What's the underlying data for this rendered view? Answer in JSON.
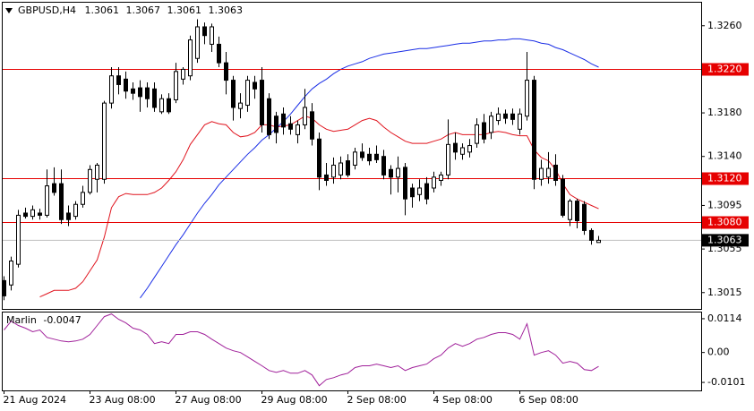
{
  "chart_data": [
    {
      "type": "candlestick",
      "title": "GBPUSD,H4",
      "categories": [
        "21 Aug 2024",
        null,
        null,
        null,
        null,
        null,
        null,
        null,
        null,
        null,
        null,
        null,
        "23 Aug 08:00",
        null,
        null,
        null,
        null,
        null,
        null,
        null,
        null,
        null,
        null,
        null,
        "27 Aug 08:00",
        null,
        null,
        null,
        null,
        null,
        null,
        null,
        null,
        null,
        null,
        null,
        "29 Aug 08:00",
        null,
        null,
        null,
        null,
        null,
        null,
        null,
        null,
        null,
        null,
        null,
        "2 Sep 08:00",
        null,
        null,
        null,
        null,
        null,
        null,
        null,
        null,
        null,
        null,
        null,
        "4 Sep 08:00",
        null,
        null,
        null,
        null,
        null,
        null,
        null,
        null,
        null,
        null,
        null,
        "6 Sep 08:00",
        null,
        null,
        null,
        null,
        null,
        null,
        null,
        null,
        null,
        null,
        null
      ],
      "open": [
        1.3026,
        1.3022,
        1.3041,
        1.3088,
        1.3085,
        1.3088,
        1.3086,
        1.3115,
        1.3115,
        1.3088,
        1.3085,
        1.3096,
        1.3107,
        1.3119,
        1.3119,
        1.3189,
        1.3214,
        1.3211,
        1.3202,
        1.3203,
        1.3203,
        1.3202,
        1.3181,
        1.3193,
        1.3192,
        1.3211,
        1.3214,
        1.323,
        1.3259,
        1.3243,
        1.3243,
        1.3226,
        1.321,
        1.3184,
        1.3187,
        1.3208,
        1.321,
        1.3193,
        1.3177,
        1.3179,
        1.317,
        1.316,
        1.3169,
        1.3181,
        1.3156,
        1.3123,
        1.3121,
        1.3123,
        1.3136,
        1.3132,
        1.3144,
        1.3142,
        1.3142,
        1.314,
        1.3128,
        1.3121,
        1.313,
        1.3111,
        1.3105,
        1.3115,
        1.3111,
        1.3118,
        1.3123,
        1.3152,
        1.3142,
        1.3144,
        1.3152,
        1.3171,
        1.3162,
        1.3173,
        1.3179,
        1.3179,
        1.3165,
        1.3177,
        1.321,
        1.3119,
        1.3121,
        1.3132,
        1.3119,
        1.3082,
        1.3099,
        1.3096,
        1.3072,
        1.3061
      ],
      "high": [
        1.303,
        1.3048,
        1.3091,
        1.3093,
        1.3095,
        1.3092,
        1.3128,
        1.313,
        1.3128,
        1.3095,
        1.3099,
        1.3113,
        1.3132,
        1.3134,
        1.3191,
        1.3222,
        1.3222,
        1.3218,
        1.3208,
        1.321,
        1.3208,
        1.3208,
        1.3197,
        1.3198,
        1.3226,
        1.3222,
        1.3251,
        1.3266,
        1.3263,
        1.3262,
        1.325,
        1.3236,
        1.3214,
        1.3198,
        1.3214,
        1.3214,
        1.3222,
        1.3198,
        1.3181,
        1.3185,
        1.3177,
        1.3173,
        1.3202,
        1.3189,
        1.3162,
        1.3134,
        1.3139,
        1.314,
        1.3142,
        1.3148,
        1.3152,
        1.3148,
        1.315,
        1.3146,
        1.3132,
        1.314,
        1.3134,
        1.3115,
        1.3119,
        1.3121,
        1.3126,
        1.3126,
        1.3174,
        1.3162,
        1.3152,
        1.3156,
        1.3175,
        1.3179,
        1.3181,
        1.3185,
        1.3183,
        1.3184,
        1.3184,
        1.3236,
        1.3214,
        1.3137,
        1.3144,
        1.3142,
        1.3123,
        1.3101,
        1.3101,
        1.3099,
        1.3074,
        1.3067
      ],
      "low": [
        1.3008,
        1.3017,
        1.3038,
        1.3083,
        1.3082,
        1.3082,
        1.3084,
        1.3104,
        1.3078,
        1.3076,
        1.3082,
        1.3093,
        1.3105,
        1.3107,
        1.3115,
        1.3184,
        1.3197,
        1.3193,
        1.3192,
        1.3181,
        1.3185,
        1.3181,
        1.3179,
        1.3179,
        1.3189,
        1.3206,
        1.321,
        1.3226,
        1.3243,
        1.3236,
        1.3222,
        1.3197,
        1.3173,
        1.3175,
        1.3181,
        1.3193,
        1.3162,
        1.3156,
        1.3152,
        1.316,
        1.316,
        1.3152,
        1.3165,
        1.315,
        1.3109,
        1.3113,
        1.3115,
        1.3119,
        1.3121,
        1.3128,
        1.3136,
        1.3132,
        1.3134,
        1.3119,
        1.3105,
        1.3107,
        1.3086,
        1.3093,
        1.3099,
        1.3096,
        1.3107,
        1.3113,
        1.3119,
        1.3137,
        1.3137,
        1.3139,
        1.3148,
        1.3152,
        1.3156,
        1.3169,
        1.317,
        1.3169,
        1.316,
        1.3173,
        1.311,
        1.3113,
        1.3115,
        1.3113,
        1.3084,
        1.3076,
        1.3074,
        1.3068,
        1.3059,
        1.3061
      ],
      "close": [
        1.3012,
        1.3044,
        1.3086,
        1.3085,
        1.3091,
        1.3086,
        1.3113,
        1.3107,
        1.3082,
        1.3082,
        1.3096,
        1.3107,
        1.3128,
        1.3132,
        1.3189,
        1.3214,
        1.3206,
        1.32,
        1.3198,
        1.3195,
        1.3193,
        1.3185,
        1.3193,
        1.3181,
        1.3218,
        1.322,
        1.3247,
        1.3259,
        1.3251,
        1.3259,
        1.3226,
        1.321,
        1.3185,
        1.3189,
        1.321,
        1.3202,
        1.3169,
        1.316,
        1.3162,
        1.3167,
        1.3165,
        1.3169,
        1.3185,
        1.3156,
        1.3121,
        1.3118,
        1.3132,
        1.3134,
        1.3123,
        1.3144,
        1.3139,
        1.3136,
        1.3137,
        1.3123,
        1.3121,
        1.3129,
        1.3101,
        1.3103,
        1.3111,
        1.3101,
        1.3121,
        1.3123,
        1.3151,
        1.3144,
        1.3148,
        1.315,
        1.3169,
        1.3156,
        1.3177,
        1.3179,
        1.3175,
        1.3174,
        1.3179,
        1.321,
        1.3119,
        1.3129,
        1.3129,
        1.3118,
        1.3086,
        1.3099,
        1.3081,
        1.3072,
        1.3063,
        1.3063
      ],
      "bull_color": "#ffffff",
      "bear_color": "#000000",
      "wick_color": "#000000",
      "moving_averages": [
        {
          "color": "#e0141e",
          "values": [
            null,
            null,
            null,
            null,
            null,
            1.3011,
            1.3014,
            1.3017,
            1.3017,
            1.3017,
            1.3019,
            1.3025,
            1.3035,
            1.3045,
            1.3066,
            1.3093,
            1.3103,
            1.3106,
            1.3105,
            1.3105,
            1.3105,
            1.3107,
            1.3111,
            1.3118,
            1.3126,
            1.3137,
            1.3151,
            1.316,
            1.3169,
            1.3172,
            1.317,
            1.3169,
            1.3162,
            1.3158,
            1.3159,
            1.3162,
            1.3169,
            1.3169,
            1.3167,
            1.3168,
            1.3169,
            1.3173,
            1.3177,
            1.3175,
            1.3169,
            1.3165,
            1.3163,
            1.3164,
            1.3165,
            1.3169,
            1.3173,
            1.3175,
            1.3173,
            1.3167,
            1.3162,
            1.3158,
            1.3154,
            1.3152,
            1.3152,
            1.3152,
            1.3154,
            1.3156,
            1.316,
            1.3162,
            1.316,
            1.316,
            1.316,
            1.316,
            1.3162,
            1.3163,
            1.3162,
            1.316,
            1.3159,
            1.3159,
            1.3146,
            1.3139,
            1.3136,
            1.3128,
            1.3115,
            1.3105,
            1.3101,
            1.3098,
            1.3095,
            1.3092
          ]
        },
        {
          "color": "#1a2ee6",
          "values": [
            null,
            null,
            null,
            null,
            null,
            null,
            null,
            null,
            null,
            null,
            null,
            null,
            null,
            null,
            null,
            null,
            null,
            null,
            null,
            1.301,
            1.3019,
            1.3029,
            1.3039,
            1.3049,
            1.3059,
            1.3068,
            1.3078,
            1.3088,
            1.3097,
            1.3105,
            1.3114,
            1.3121,
            1.3128,
            1.3135,
            1.3142,
            1.3148,
            1.3155,
            1.316,
            1.3166,
            1.3172,
            1.3179,
            1.3187,
            1.3195,
            1.3202,
            1.3207,
            1.3211,
            1.3216,
            1.322,
            1.3223,
            1.3225,
            1.3227,
            1.323,
            1.3232,
            1.3234,
            1.3235,
            1.3236,
            1.3237,
            1.3238,
            1.3239,
            1.3239,
            1.324,
            1.3241,
            1.3242,
            1.3243,
            1.3244,
            1.3244,
            1.3245,
            1.3246,
            1.3246,
            1.3247,
            1.3247,
            1.3248,
            1.3248,
            1.3247,
            1.3246,
            1.3244,
            1.3243,
            1.324,
            1.3238,
            1.3235,
            1.3232,
            1.3229,
            1.3225,
            1.3222
          ]
        }
      ],
      "hlines": [
        {
          "value": 1.322,
          "label": "1.3220"
        },
        {
          "value": 1.312,
          "label": "1.3120"
        },
        {
          "value": 1.308,
          "label": "1.3080"
        }
      ],
      "hline_color": "#e60000",
      "ylim": [
        1.3,
        1.3282
      ],
      "yticks": [
        {
          "value": 1.326,
          "label": "1.3260"
        },
        {
          "value": 1.318,
          "label": "1.3180"
        },
        {
          "value": 1.314,
          "label": "1.3140"
        },
        1.3095,
        1.3055,
        1.3015
      ],
      "grid": false
    },
    {
      "type": "line",
      "title": "Marlin",
      "color": "#a0209a",
      "values": [
        0.0076,
        0.0106,
        0.0091,
        0.0082,
        0.007,
        0.0076,
        0.0051,
        0.0045,
        0.0039,
        0.0036,
        0.0039,
        0.0045,
        0.0061,
        0.0091,
        0.0121,
        0.013,
        0.0112,
        0.01,
        0.0082,
        0.0076,
        0.0061,
        0.003,
        0.0036,
        0.003,
        0.0061,
        0.0061,
        0.007,
        0.007,
        0.0061,
        0.0045,
        0.003,
        0.0015,
        0.0006,
        0,
        -0.0015,
        -0.003,
        -0.0045,
        -0.0061,
        -0.0067,
        -0.0061,
        -0.007,
        -0.007,
        -0.0061,
        -0.0076,
        -0.0112,
        -0.0091,
        -0.0085,
        -0.0076,
        -0.007,
        -0.0051,
        -0.0045,
        -0.0045,
        -0.0039,
        -0.0045,
        -0.0051,
        -0.0045,
        -0.0061,
        -0.0051,
        -0.0045,
        -0.0039,
        -0.0021,
        -0.0009,
        0.0015,
        0.003,
        0.0021,
        0.003,
        0.0045,
        0.0051,
        0.0061,
        0.0067,
        0.0067,
        0.0061,
        0.0045,
        0.0097,
        -0.0009,
        0,
        0.0006,
        -0.0009,
        -0.0036,
        -0.003,
        -0.0036,
        -0.0058,
        -0.0061,
        -0.0047
      ],
      "ylim": [
        -0.0128,
        0.0138
      ],
      "yticks": [
        0.0114,
        {
          "value": 0,
          "label": "0.00"
        },
        -0.0101
      ],
      "grid": false
    }
  ]
}
